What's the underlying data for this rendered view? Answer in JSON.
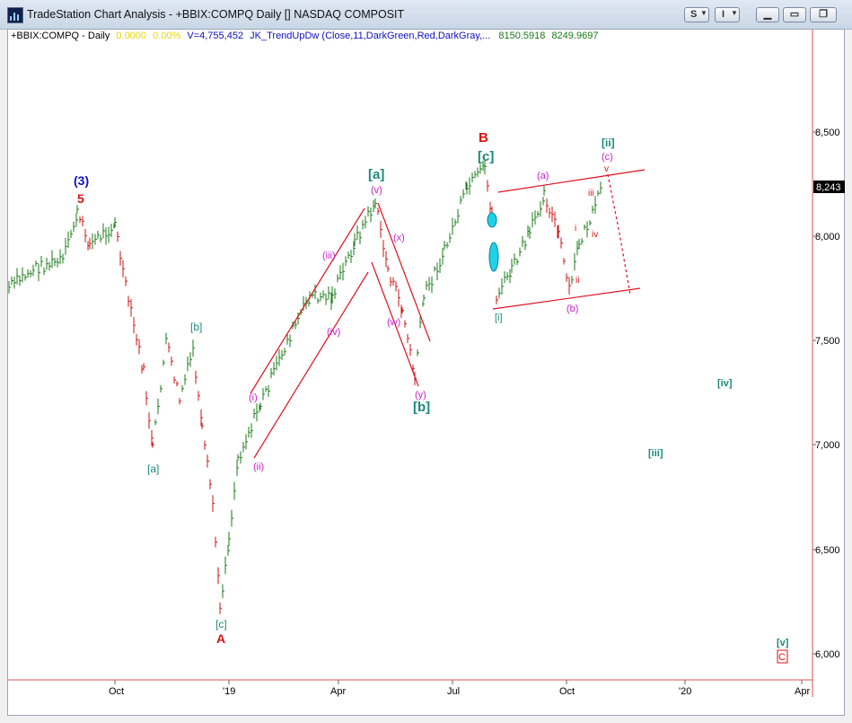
{
  "window": {
    "title": "TradeStation Chart Analysis - +BBIX:COMPQ Daily [] NASDAQ COMPOSIT",
    "s_button": "S",
    "i_button": "I"
  },
  "header": {
    "symbol": "+BBIX:COMPQ - Daily",
    "change": "0.0000",
    "change_pct": "0.00%",
    "volume": "V=4,755,452",
    "indicator": "JK_TrendUpDw (Close,11,DarkGreen,Red,DarkGray,...",
    "ind_value1": "8150.5918",
    "ind_value2": "8249.9697"
  },
  "price_axis": {
    "ticks": [
      "8,500",
      "8,000",
      "7,500",
      "7,000",
      "6,500",
      "6,000"
    ],
    "last_price": "8,243"
  },
  "time_axis": {
    "ticks": [
      "Oct",
      "'19",
      "Apr",
      "Jul",
      "Oct",
      "'20",
      "Apr"
    ]
  },
  "wave_labels": {
    "w3": "(3)",
    "w5": "5",
    "wa_low": "[a]",
    "wb_small": "[b]",
    "wc_low": "[c]",
    "A": "A",
    "mi": "(i)",
    "mii": "(ii)",
    "miii": "(iii)",
    "miv": "(iv)",
    "mv": "(v)",
    "a_top": "[a]",
    "mx": "(x)",
    "mw": "(w)",
    "my": "(y)",
    "b_mid": "[b]",
    "B": "B",
    "c_top": "[c]",
    "i_b": "[i]",
    "ma": "(a)",
    "mb": "(b)",
    "mc": "(c)",
    "ii_top": "[ii]",
    "v_s": "v",
    "iii_s": "iii",
    "iv_s": "iv",
    "i_s": "i",
    "ii_s": "ii",
    "iii_f": "[iii]",
    "iv_f": "[iv]",
    "v_f": "[v]",
    "C": "C"
  },
  "colors": {
    "up_bar": "#1a7a1a",
    "down_bar": "#cc1111",
    "channel": "#e01020",
    "magenta": "#cc22cc",
    "teal": "#1a8a7a",
    "blue": "#1010c0",
    "red_label": "#dd1111"
  }
}
